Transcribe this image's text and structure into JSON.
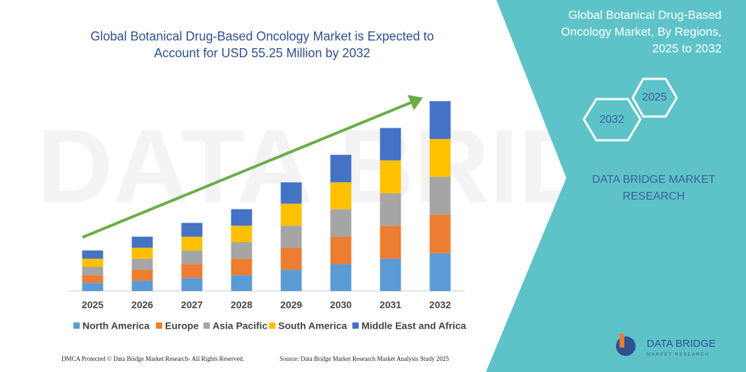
{
  "chart_data": {
    "type": "stacked_bar",
    "title": "Global Botanical Drug-Based Oncology Market is Expected to Account for USD 55.25 Million by 2032",
    "categories": [
      "2025",
      "2026",
      "2027",
      "2028",
      "2029",
      "2030",
      "2031",
      "2032"
    ],
    "series": [
      {
        "name": "North America",
        "color": "#5b9bd5",
        "values": [
          12,
          15,
          19,
          23,
          31,
          39,
          47,
          55
        ]
      },
      {
        "name": "Europe",
        "color": "#ed7d31",
        "values": [
          11,
          16,
          20,
          24,
          32,
          40,
          48,
          56
        ]
      },
      {
        "name": "Asia Pacific",
        "color": "#a5a5a5",
        "values": [
          12,
          16,
          20,
          24,
          32,
          40,
          47,
          55
        ]
      },
      {
        "name": "South America",
        "color": "#ffc000",
        "values": [
          12,
          16,
          20,
          24,
          32,
          39,
          48,
          55
        ]
      },
      {
        "name": "Middle East and Africa",
        "color": "#4472c4",
        "values": [
          12,
          16,
          20,
          24,
          31,
          40,
          47,
          55
        ]
      }
    ],
    "ylim": [
      0,
      280
    ]
  },
  "panel": {
    "title": "Global Botanical Drug-Based Oncology Market, By Regions, 2025 to 2032",
    "hex_labels": [
      "2025",
      "2032"
    ],
    "brand": "DATA BRIDGE MARKET RESEARCH",
    "logo_name": "DATA BRIDGE",
    "logo_sub": "MARKET RESEARCH"
  },
  "footer": {
    "left": "DMCA Protected © Data Bridge Market Research- All Rights Reserved.",
    "right": "Source: Data Bridge Market Research Market Analysis Study 2025"
  }
}
